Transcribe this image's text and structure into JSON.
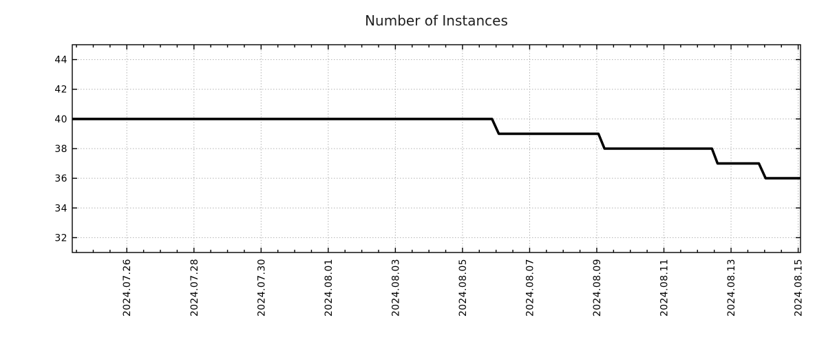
{
  "chart_data": {
    "type": "line",
    "subtype": "step",
    "title": "Number of Instances",
    "legend": "none",
    "grid": true,
    "colors": {
      "line": "#000000",
      "grid": "#b0b0b0",
      "axis": "#000000",
      "title": "#1f1f1f",
      "background": "#ffffff"
    },
    "x_axis": {
      "unit": "days since 2024.07.24 00:00",
      "range": [
        0.375,
        22.07
      ],
      "minor_tick_interval": 0.5,
      "major_ticks": [
        {
          "day": 2,
          "label": "2024.07.26"
        },
        {
          "day": 4,
          "label": "2024.07.28"
        },
        {
          "day": 6,
          "label": "2024.07.30"
        },
        {
          "day": 8,
          "label": "2024.08.01"
        },
        {
          "day": 10,
          "label": "2024.08.03"
        },
        {
          "day": 12,
          "label": "2024.08.05"
        },
        {
          "day": 14,
          "label": "2024.08.07"
        },
        {
          "day": 16,
          "label": "2024.08.09"
        },
        {
          "day": 18,
          "label": "2024.08.11"
        },
        {
          "day": 20,
          "label": "2024.08.13"
        },
        {
          "day": 22,
          "label": "2024.08.15"
        }
      ]
    },
    "y_axis": {
      "range": [
        31,
        45
      ],
      "tick_values": [
        32,
        34,
        36,
        38,
        40,
        42,
        44
      ],
      "tick_labels": [
        "32",
        "34",
        "36",
        "38",
        "40",
        "42",
        "44"
      ]
    },
    "series": [
      {
        "name": "instances",
        "points": [
          [
            0.375,
            40
          ],
          [
            12.88,
            40
          ],
          [
            13.08,
            39
          ],
          [
            16.05,
            39
          ],
          [
            16.23,
            38
          ],
          [
            19.43,
            38
          ],
          [
            19.6,
            37
          ],
          [
            20.83,
            37
          ],
          [
            21.03,
            36
          ],
          [
            22.07,
            36
          ]
        ]
      }
    ],
    "annotations": {
      "description_levels": [
        40,
        39,
        38,
        37,
        36
      ]
    }
  }
}
